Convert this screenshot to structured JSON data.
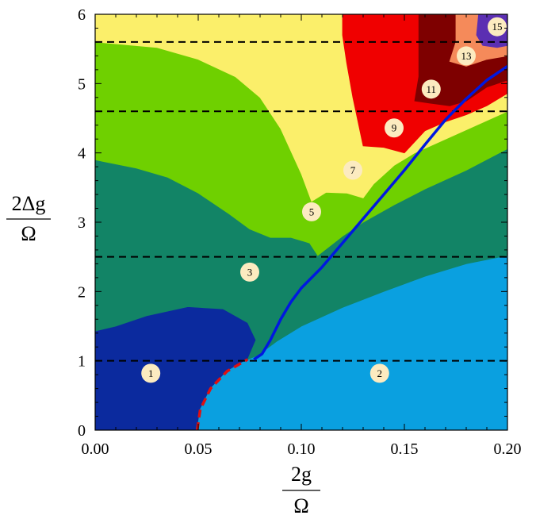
{
  "chart_data": {
    "type": "area",
    "title": "",
    "xlabel": {
      "numerator": "2g",
      "denominator": "Ω"
    },
    "ylabel": {
      "numerator": "2Δg",
      "denominator": "Ω"
    },
    "xlim": [
      0,
      0.2
    ],
    "ylim": [
      0,
      6
    ],
    "x_ticks": [
      "0.00",
      "0.05",
      "0.10",
      "0.15",
      "0.20"
    ],
    "y_ticks": [
      "0",
      "1",
      "2",
      "3",
      "4",
      "5",
      "6"
    ],
    "grid": false,
    "legend": "none",
    "colors": {
      "region_1": "#0b2a9e",
      "region_2": "#0aa0e0",
      "region_3": "#128466",
      "region_5": "#6fd000",
      "region_7": "#fbef6a",
      "region_9": "#f00000",
      "region_11": "#7e0000",
      "region_13": "#f58a5a",
      "region_15": "#5b2fb2",
      "blue_line": "#0018e0",
      "red_dashed": "#e01010",
      "dashed_lines": "#000000",
      "label_circle": "#fcebc0"
    },
    "regions": [
      {
        "id": "1",
        "points": [
          [
            0,
            0
          ],
          [
            0.0495,
            0
          ],
          [
            0.051,
            0.3
          ],
          [
            0.056,
            0.6
          ],
          [
            0.064,
            0.85
          ],
          [
            0.074,
            1.02
          ],
          [
            0.078,
            1.3
          ],
          [
            0.074,
            1.55
          ],
          [
            0.062,
            1.75
          ],
          [
            0.045,
            1.78
          ],
          [
            0.025,
            1.65
          ],
          [
            0.01,
            1.5
          ],
          [
            0,
            1.43
          ]
        ]
      },
      {
        "id": "2",
        "points": [
          [
            0.0495,
            0
          ],
          [
            0.2,
            0
          ],
          [
            0.2,
            2.52
          ],
          [
            0.18,
            2.4
          ],
          [
            0.16,
            2.22
          ],
          [
            0.14,
            2.0
          ],
          [
            0.12,
            1.77
          ],
          [
            0.1,
            1.5
          ],
          [
            0.088,
            1.28
          ],
          [
            0.079,
            1.08
          ],
          [
            0.074,
            1.02
          ],
          [
            0.064,
            0.85
          ],
          [
            0.056,
            0.6
          ],
          [
            0.051,
            0.3
          ]
        ]
      },
      {
        "id": "3",
        "points": [
          [
            0,
            1.43
          ],
          [
            0.01,
            1.5
          ],
          [
            0.025,
            1.65
          ],
          [
            0.045,
            1.78
          ],
          [
            0.062,
            1.75
          ],
          [
            0.074,
            1.55
          ],
          [
            0.078,
            1.3
          ],
          [
            0.074,
            1.02
          ],
          [
            0.079,
            1.08
          ],
          [
            0.088,
            1.28
          ],
          [
            0.1,
            1.5
          ],
          [
            0.12,
            1.77
          ],
          [
            0.14,
            2.0
          ],
          [
            0.16,
            2.22
          ],
          [
            0.18,
            2.4
          ],
          [
            0.2,
            2.52
          ],
          [
            0.2,
            4.06
          ],
          [
            0.18,
            3.75
          ],
          [
            0.16,
            3.48
          ],
          [
            0.145,
            3.25
          ],
          [
            0.13,
            3.0
          ],
          [
            0.12,
            2.8
          ],
          [
            0.108,
            2.52
          ],
          [
            0.104,
            2.7
          ],
          [
            0.095,
            2.78
          ],
          [
            0.085,
            2.78
          ],
          [
            0.075,
            2.9
          ],
          [
            0.065,
            3.12
          ],
          [
            0.05,
            3.42
          ],
          [
            0.035,
            3.65
          ],
          [
            0.02,
            3.78
          ],
          [
            0,
            3.9
          ]
        ]
      },
      {
        "id": "5",
        "points": [
          [
            0,
            3.9
          ],
          [
            0.02,
            3.78
          ],
          [
            0.035,
            3.65
          ],
          [
            0.05,
            3.42
          ],
          [
            0.065,
            3.12
          ],
          [
            0.075,
            2.9
          ],
          [
            0.085,
            2.78
          ],
          [
            0.095,
            2.78
          ],
          [
            0.104,
            2.7
          ],
          [
            0.108,
            2.52
          ],
          [
            0.12,
            2.8
          ],
          [
            0.13,
            3.0
          ],
          [
            0.145,
            3.25
          ],
          [
            0.16,
            3.48
          ],
          [
            0.18,
            3.75
          ],
          [
            0.2,
            4.06
          ],
          [
            0.2,
            4.6
          ],
          [
            0.185,
            4.4
          ],
          [
            0.17,
            4.2
          ],
          [
            0.155,
            4.0
          ],
          [
            0.145,
            3.82
          ],
          [
            0.135,
            3.55
          ],
          [
            0.13,
            3.35
          ],
          [
            0.122,
            3.42
          ],
          [
            0.112,
            3.43
          ],
          [
            0.105,
            3.3
          ],
          [
            0.1,
            3.7
          ],
          [
            0.09,
            4.35
          ],
          [
            0.08,
            4.8
          ],
          [
            0.068,
            5.1
          ],
          [
            0.05,
            5.35
          ],
          [
            0.03,
            5.52
          ],
          [
            0,
            5.6
          ]
        ]
      },
      {
        "id": "7",
        "points": [
          [
            0,
            5.6
          ],
          [
            0.03,
            5.52
          ],
          [
            0.05,
            5.35
          ],
          [
            0.068,
            5.1
          ],
          [
            0.08,
            4.8
          ],
          [
            0.09,
            4.35
          ],
          [
            0.1,
            3.7
          ],
          [
            0.105,
            3.3
          ],
          [
            0.112,
            3.43
          ],
          [
            0.122,
            3.42
          ],
          [
            0.13,
            3.35
          ],
          [
            0.135,
            3.55
          ],
          [
            0.145,
            3.82
          ],
          [
            0.155,
            4.0
          ],
          [
            0.17,
            4.2
          ],
          [
            0.185,
            4.4
          ],
          [
            0.2,
            4.6
          ],
          [
            0.2,
            4.86
          ],
          [
            0.19,
            4.68
          ],
          [
            0.18,
            4.55
          ],
          [
            0.17,
            4.45
          ],
          [
            0.16,
            4.32
          ],
          [
            0.15,
            4.0
          ],
          [
            0.14,
            4.08
          ],
          [
            0.13,
            4.1
          ],
          [
            0.125,
            4.8
          ],
          [
            0.122,
            5.3
          ],
          [
            0.12,
            5.7
          ],
          [
            0.12,
            6
          ],
          [
            0,
            6
          ]
        ]
      },
      {
        "id": "9",
        "points": [
          [
            0.12,
            6
          ],
          [
            0.157,
            6
          ],
          [
            0.157,
            5.1
          ],
          [
            0.155,
            4.75
          ],
          [
            0.162,
            4.72
          ],
          [
            0.172,
            4.68
          ],
          [
            0.18,
            4.75
          ],
          [
            0.19,
            4.95
          ],
          [
            0.2,
            5.05
          ],
          [
            0.2,
            4.86
          ],
          [
            0.19,
            4.68
          ],
          [
            0.18,
            4.55
          ],
          [
            0.17,
            4.45
          ],
          [
            0.16,
            4.32
          ],
          [
            0.15,
            4.0
          ],
          [
            0.14,
            4.08
          ],
          [
            0.13,
            4.1
          ],
          [
            0.125,
            4.8
          ],
          [
            0.122,
            5.3
          ],
          [
            0.12,
            5.7
          ]
        ]
      },
      {
        "id": "11",
        "points": [
          [
            0.157,
            6
          ],
          [
            0.175,
            6
          ],
          [
            0.175,
            5.6
          ],
          [
            0.172,
            5.32
          ],
          [
            0.18,
            5.25
          ],
          [
            0.19,
            5.35
          ],
          [
            0.2,
            5.4
          ],
          [
            0.2,
            5.05
          ],
          [
            0.19,
            4.95
          ],
          [
            0.18,
            4.75
          ],
          [
            0.172,
            4.68
          ],
          [
            0.162,
            4.72
          ],
          [
            0.155,
            4.75
          ],
          [
            0.157,
            5.1
          ]
        ]
      },
      {
        "id": "13",
        "points": [
          [
            0.175,
            6
          ],
          [
            0.186,
            6
          ],
          [
            0.185,
            5.7
          ],
          [
            0.188,
            5.55
          ],
          [
            0.195,
            5.52
          ],
          [
            0.2,
            5.55
          ],
          [
            0.2,
            5.4
          ],
          [
            0.19,
            5.35
          ],
          [
            0.18,
            5.25
          ],
          [
            0.172,
            5.32
          ],
          [
            0.175,
            5.6
          ]
        ]
      },
      {
        "id": "15",
        "points": [
          [
            0.186,
            6
          ],
          [
            0.2,
            6
          ],
          [
            0.2,
            5.55
          ],
          [
            0.195,
            5.52
          ],
          [
            0.188,
            5.55
          ],
          [
            0.185,
            5.7
          ]
        ]
      }
    ],
    "blue_line": [
      [
        0.077,
        1.02
      ],
      [
        0.081,
        1.1
      ],
      [
        0.085,
        1.3
      ],
      [
        0.09,
        1.6
      ],
      [
        0.095,
        1.85
      ],
      [
        0.1,
        2.05
      ],
      [
        0.11,
        2.35
      ],
      [
        0.12,
        2.7
      ],
      [
        0.13,
        3.05
      ],
      [
        0.14,
        3.4
      ],
      [
        0.15,
        3.75
      ],
      [
        0.16,
        4.12
      ],
      [
        0.17,
        4.48
      ],
      [
        0.18,
        4.78
      ],
      [
        0.19,
        5.05
      ],
      [
        0.2,
        5.25
      ]
    ],
    "red_dashed_line": [
      [
        0.0495,
        0
      ],
      [
        0.051,
        0.3
      ],
      [
        0.056,
        0.6
      ],
      [
        0.064,
        0.85
      ],
      [
        0.074,
        1.02
      ]
    ],
    "dashed_hlines": [
      1.0,
      2.5,
      4.6,
      5.6
    ],
    "region_labels": [
      {
        "text": "1",
        "x": 0.027,
        "y": 0.82
      },
      {
        "text": "2",
        "x": 0.138,
        "y": 0.82
      },
      {
        "text": "3",
        "x": 0.075,
        "y": 2.28
      },
      {
        "text": "5",
        "x": 0.105,
        "y": 3.15
      },
      {
        "text": "7",
        "x": 0.125,
        "y": 3.75
      },
      {
        "text": "9",
        "x": 0.145,
        "y": 4.36
      },
      {
        "text": "11",
        "x": 0.163,
        "y": 4.92
      },
      {
        "text": "13",
        "x": 0.18,
        "y": 5.4
      },
      {
        "text": "15",
        "x": 0.195,
        "y": 5.82
      }
    ]
  }
}
